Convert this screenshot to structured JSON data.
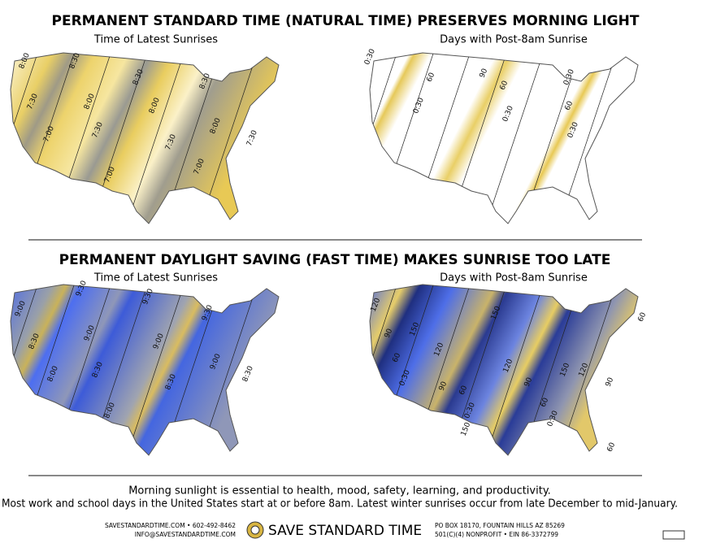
{
  "sections": [
    {
      "title": "PERMANENT STANDARD TIME (NATURAL TIME) PRESERVES MORNING LIGHT",
      "maps": [
        {
          "subtitle": "Time of Latest Sunrises",
          "contour_labels": [
            "8:00",
            "8:30",
            "7:30",
            "8:00",
            "8:30",
            "8:30",
            "7:00",
            "7:30",
            "8:00",
            "7:30",
            "8:00",
            "7:00",
            "7:00",
            "7:30"
          ]
        },
        {
          "subtitle": "Days with Post-8am Sunrise",
          "contour_labels": [
            "0:30",
            "60",
            "0:30",
            "90",
            "60",
            "0:30",
            "0:30",
            "60",
            "0:30"
          ]
        }
      ]
    },
    {
      "title": "PERMANENT DAYLIGHT SAVING (FAST TIME) MAKES SUNRISE TOO LATE",
      "maps": [
        {
          "subtitle": "Time of Latest Sunrises",
          "contour_labels": [
            "9:00",
            "9:30",
            "9:30",
            "9:30",
            "8:30",
            "9:00",
            "8:00",
            "8:30",
            "9:00",
            "9:00",
            "8:30",
            "8:00",
            "8:30"
          ]
        },
        {
          "subtitle": "Days with Post-8am Sunrise",
          "contour_labels": [
            "120",
            "90",
            "150",
            "60",
            "0:30",
            "120",
            "90",
            "150",
            "120",
            "60",
            "0:30",
            "150",
            "90",
            "150",
            "60",
            "0:30",
            "120",
            "90",
            "60",
            "60"
          ]
        }
      ]
    }
  ],
  "footer": {
    "lines": [
      "Morning sunlight is essential to health, mood, safety, learning, and productivity.",
      "Most work and school days in the United States start at or before 8am. Latest winter sunrises occur from late December to mid-January."
    ],
    "website_phone": "SAVESTANDARDTIME.COM • 602-492-8462",
    "email": "INFO@SAVESTANDARDTIME.COM",
    "brand": "SAVE STANDARD TIME",
    "address": "PO BOX 18170, FOUNTAIN HILLS AZ 85269",
    "nonprofit": "501(C)(4) NONPROFIT • EIN 86-3372799"
  }
}
